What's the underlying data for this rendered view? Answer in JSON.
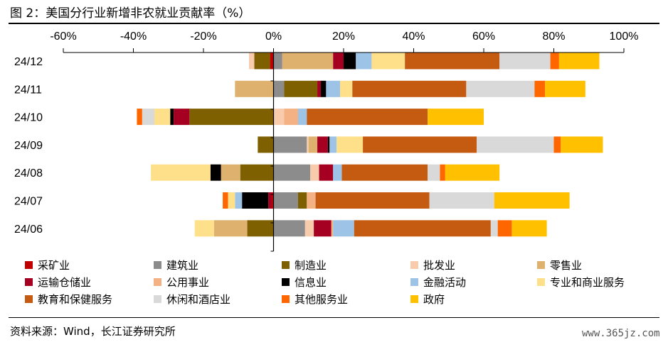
{
  "header": {
    "title": "图 2：美国分行业新增非农就业贡献率（%）"
  },
  "footer": {
    "source": "资料来源：Wind，长江证券研究所",
    "watermark": "www.365jz.com"
  },
  "chart_data": {
    "type": "bar",
    "orientation": "horizontal",
    "stacked": true,
    "title": "",
    "xlabel": "",
    "ylabel": "",
    "xlim": [
      -60,
      100
    ],
    "xticks": [
      -60,
      -40,
      -20,
      0,
      20,
      40,
      60,
      80,
      100
    ],
    "xtick_labels": [
      "-60%",
      "-40%",
      "-20%",
      "0%",
      "20%",
      "40%",
      "60%",
      "80%",
      "100%"
    ],
    "grid": false,
    "legend_position": "bottom",
    "categories": [
      "24/12",
      "24/11",
      "24/10",
      "24/09",
      "24/08",
      "24/07",
      "24/06"
    ],
    "series": [
      {
        "name": "采矿业",
        "color": "#C00000",
        "values": [
          -1.0,
          0.0,
          0.0,
          0.0,
          0.0,
          -0.5,
          0.0
        ]
      },
      {
        "name": "建筑业",
        "color": "#8C8C8C",
        "values": [
          2.5,
          3.0,
          0.0,
          9.5,
          10.5,
          7.0,
          9.0
        ]
      },
      {
        "name": "制造业",
        "color": "#7F6000",
        "values": [
          -4.5,
          9.5,
          -24.0,
          -4.5,
          -9.5,
          2.5,
          -7.5
        ]
      },
      {
        "name": "批发业",
        "color": "#F8CBAD",
        "values": [
          -1.5,
          0.0,
          3.0,
          0.5,
          2.5,
          0.0,
          2.5
        ]
      },
      {
        "name": "零售业",
        "color": "#DEB26E",
        "values": [
          14.5,
          -11.0,
          0.0,
          2.5,
          -5.5,
          0.0,
          -9.5
        ]
      },
      {
        "name": "运输仓储业",
        "color": "#A50021",
        "values": [
          3.0,
          1.0,
          -4.5,
          3.0,
          4.0,
          -1.0,
          5.0
        ]
      },
      {
        "name": "公用事业",
        "color": "#F4B183",
        "values": [
          0.0,
          0.0,
          4.0,
          0.0,
          0.0,
          2.5,
          0.5
        ]
      },
      {
        "name": "信息业",
        "color": "#000000",
        "values": [
          3.5,
          1.5,
          -1.0,
          0.5,
          -3.0,
          -7.5,
          0.0
        ]
      },
      {
        "name": "金融活动",
        "color": "#9DC3E6",
        "values": [
          4.5,
          4.0,
          2.5,
          2.0,
          2.5,
          -2.0,
          6.0
        ]
      },
      {
        "name": "专业和商业服务",
        "color": "#FFE08A",
        "values": [
          9.5,
          3.5,
          -4.5,
          7.5,
          -17.0,
          -2.0,
          -5.5
        ]
      },
      {
        "name": "教育和保健服务",
        "color": "#C55A11",
        "values": [
          27.0,
          32.5,
          34.5,
          32.5,
          24.5,
          32.5,
          39.0
        ]
      },
      {
        "name": "休闲和酒店业",
        "color": "#D9D9D9",
        "values": [
          14.5,
          19.5,
          -3.5,
          22.0,
          3.5,
          18.5,
          2.0
        ]
      },
      {
        "name": "其他服务业",
        "color": "#FF6600",
        "values": [
          2.5,
          3.0,
          -1.5,
          2.0,
          1.5,
          -1.5,
          4.0
        ]
      },
      {
        "name": "政府",
        "color": "#FFC000",
        "values": [
          11.5,
          11.5,
          16.0,
          12.0,
          15.5,
          21.5,
          10.0
        ]
      }
    ]
  }
}
